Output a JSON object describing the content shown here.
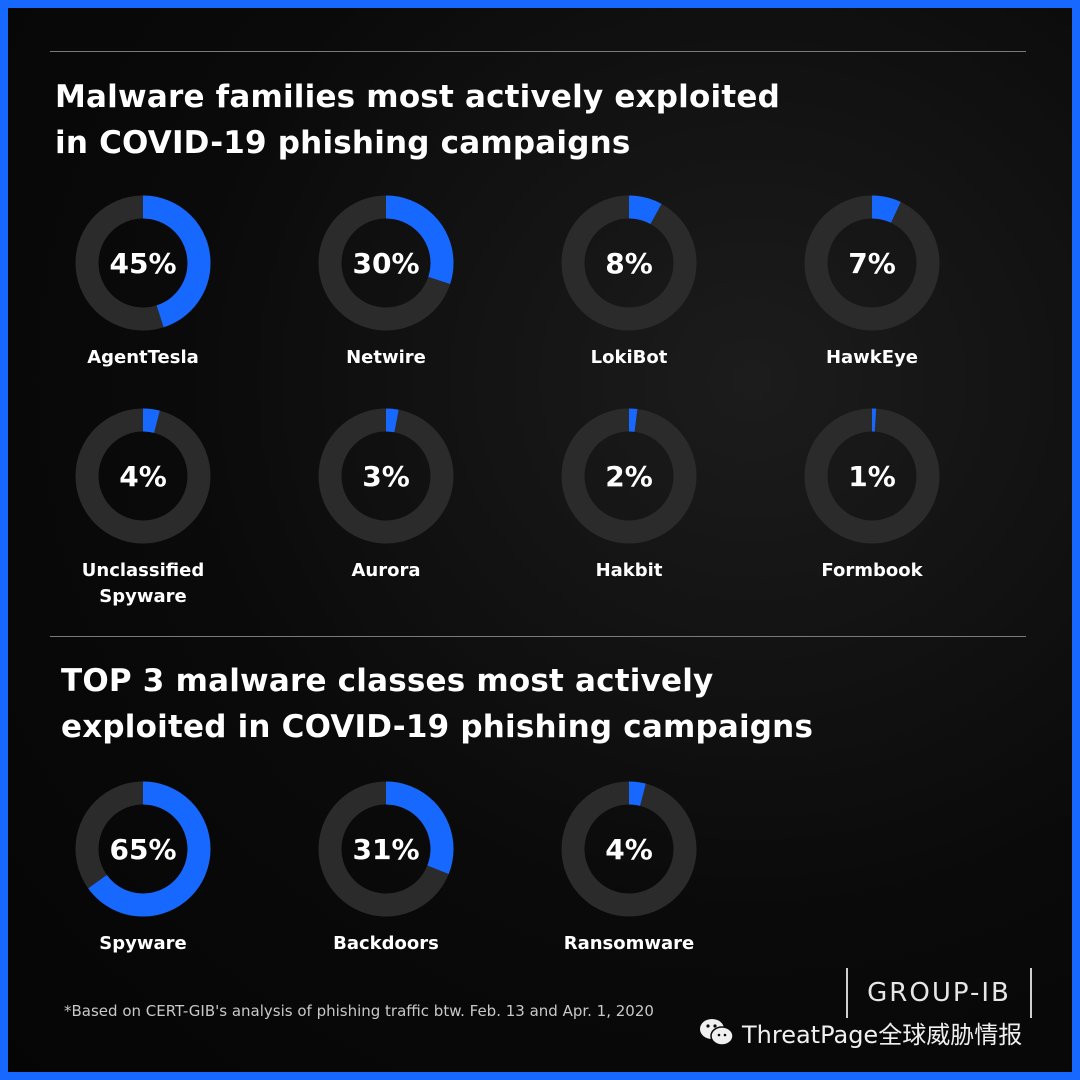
{
  "section1": {
    "title": "Malware families most actively exploited\nin COVID-19 phishing campaigns"
  },
  "section2": {
    "title": "TOP 3 malware classes most actively\nexploited in COVID-19 phishing campaigns"
  },
  "footnote": "*Based on CERT-GIB's analysis of phishing traffic btw. Feb. 13 and Apr. 1, 2020",
  "logo": "GROUP-IB",
  "watermark": "ThreatPage全球威胁情报",
  "colors": {
    "accent": "#1668ff",
    "track": "#2b2b2b",
    "background": "#0a0a0a",
    "text": "#ffffff"
  },
  "chart_data": [
    {
      "type": "pie",
      "title": "Malware families most actively exploited in COVID-19 phishing campaigns",
      "categories": [
        "AgentTesla",
        "Netwire",
        "LokiBot",
        "HawkEye",
        "Unclassified\nSpyware",
        "Aurora",
        "Hakbit",
        "Formbook"
      ],
      "values": [
        45,
        30,
        8,
        7,
        4,
        3,
        2,
        1
      ],
      "value_labels": [
        "45%",
        "30%",
        "8%",
        "7%",
        "4%",
        "3%",
        "2%",
        "1%"
      ]
    },
    {
      "type": "pie",
      "title": "TOP 3 malware classes most actively exploited in COVID-19 phishing campaigns",
      "categories": [
        "Spyware",
        "Backdoors",
        "Ransomware"
      ],
      "values": [
        65,
        31,
        4
      ],
      "value_labels": [
        "65%",
        "31%",
        "4%"
      ]
    }
  ]
}
